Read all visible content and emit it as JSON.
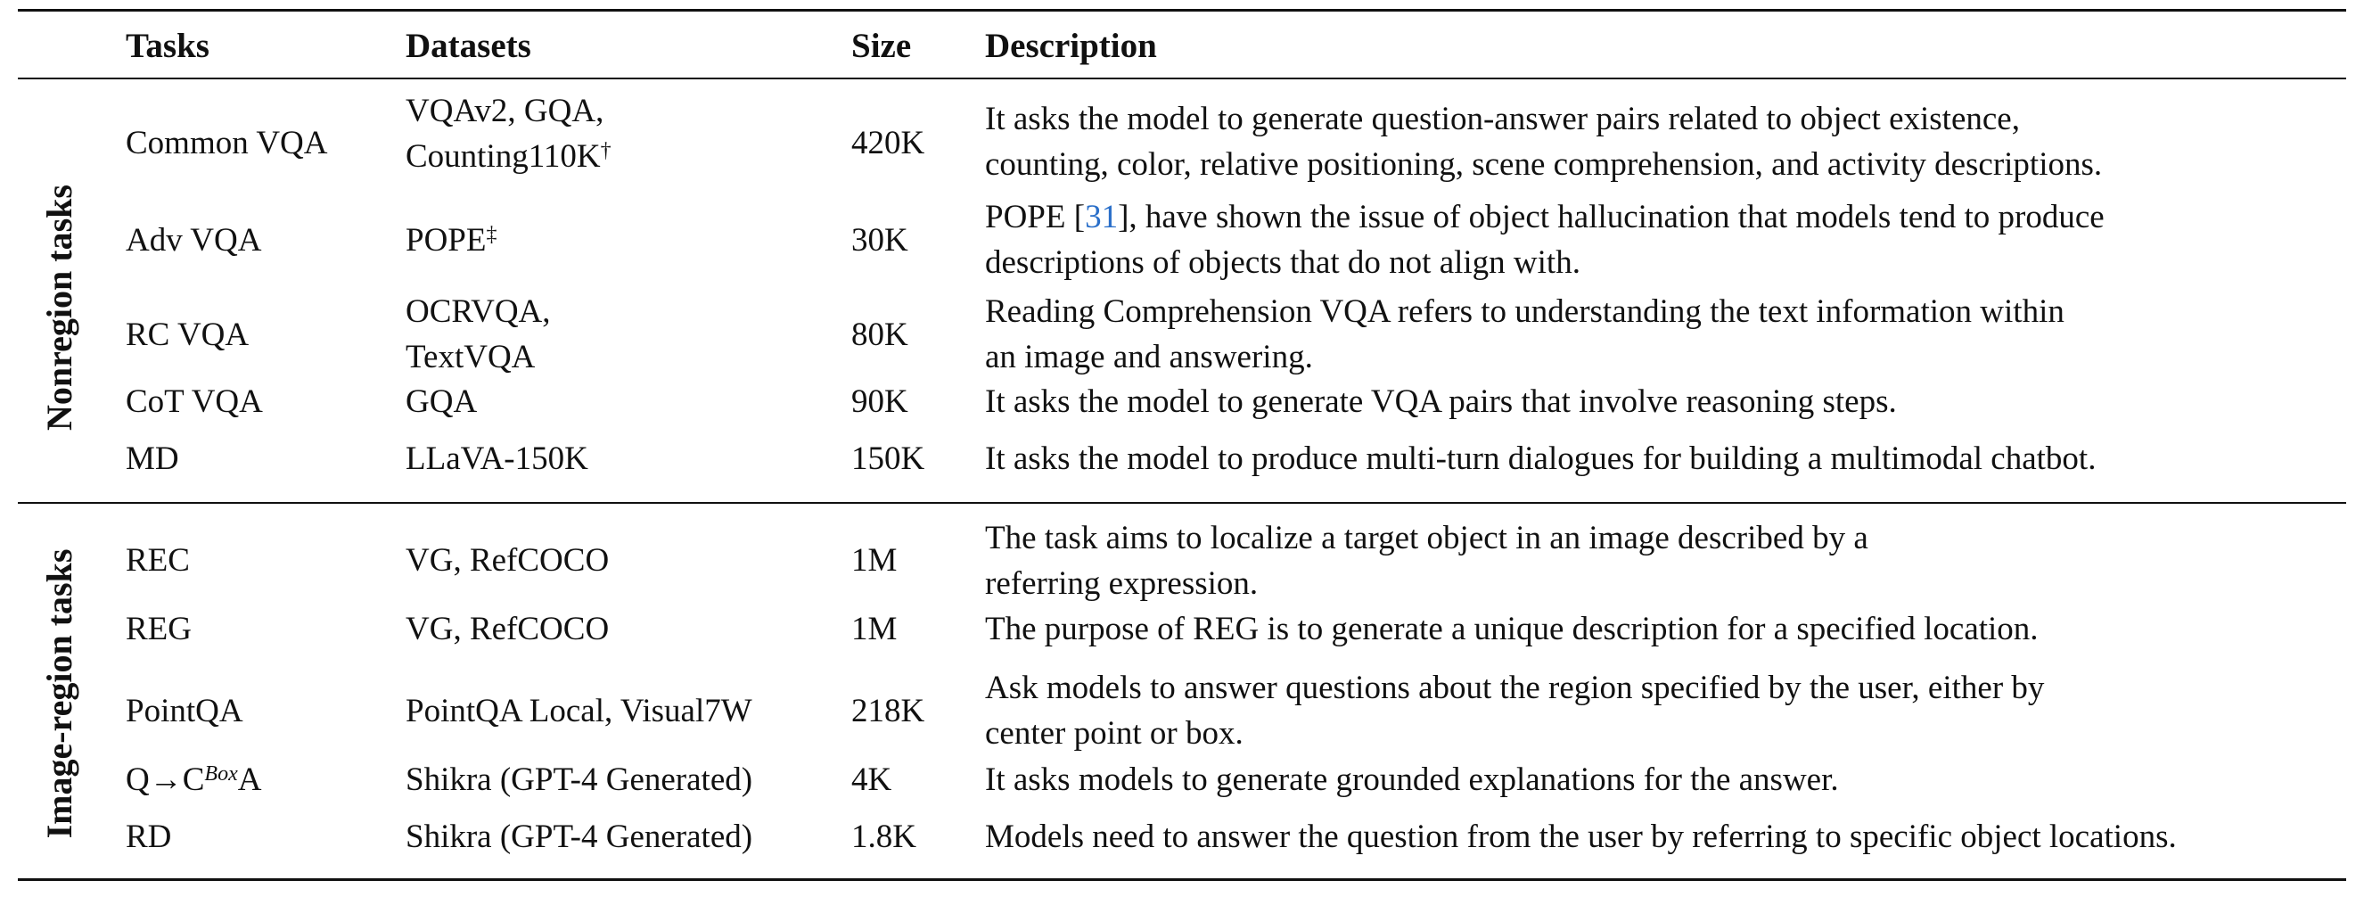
{
  "headers": {
    "tasks": "Tasks",
    "datasets": "Datasets",
    "size": "Size",
    "description": "Description"
  },
  "groups": {
    "nonregion": "Nonregion tasks",
    "image_region": "Image-region tasks"
  },
  "rows": {
    "common_vqa": {
      "task": "Common VQA",
      "datasets_line1": "VQAv2, GQA,",
      "datasets_line2": "Counting110K",
      "datasets_mark": "†",
      "size": "420K",
      "desc_line1": "It asks the model to generate question-answer pairs related to object existence,",
      "desc_line2": "counting, color, relative positioning, scene comprehension, and activity descriptions."
    },
    "adv_vqa": {
      "task": "Adv VQA",
      "datasets": "POPE",
      "datasets_mark": "‡",
      "size": "30K",
      "desc_line1_pre": "POPE [",
      "desc_line1_ref": "31",
      "desc_line1_post": "], have shown the issue of object hallucination that models tend to produce",
      "desc_line2": "descriptions of objects that do not align with."
    },
    "rc_vqa": {
      "task": "RC VQA",
      "datasets_line1": "OCRVQA,",
      "datasets_line2": "TextVQA",
      "size": "80K",
      "desc_line1": "Reading Comprehension VQA refers to understanding the text information within",
      "desc_line2": "an image and answering."
    },
    "cot_vqa": {
      "task": "CoT VQA",
      "datasets": "GQA",
      "size": "90K",
      "desc": "It asks the model to generate VQA pairs that involve reasoning steps."
    },
    "md": {
      "task": "MD",
      "datasets": "LLaVA-150K",
      "size": "150K",
      "desc": "It asks the model to produce multi-turn dialogues for building a multimodal chatbot."
    },
    "rec": {
      "task": "REC",
      "datasets": "VG, RefCOCO",
      "size": "1M",
      "desc_line1": "The task aims to localize a target object in an image described by a",
      "desc_line2": "referring expression."
    },
    "reg": {
      "task": "REG",
      "datasets": "VG, RefCOCO",
      "size": "1M",
      "desc": "The purpose of REG is to generate a unique description for a specified location."
    },
    "pointqa": {
      "task": "PointQA",
      "datasets": "PointQA Local, Visual7W",
      "size": "218K",
      "desc_line1": "Ask models to answer questions about the region specified by the user, either by",
      "desc_line2": "center point or box."
    },
    "qca": {
      "task_pre": "Q→C",
      "task_sup": "Box",
      "task_post": "A",
      "datasets": "Shikra (GPT-4 Generated)",
      "size": "4K",
      "desc": "It asks models to generate grounded explanations for the answer."
    },
    "rd": {
      "task": "RD",
      "datasets": "Shikra (GPT-4 Generated)",
      "size": "1.8K",
      "desc": "Models need to answer the question from the user by referring to specific object locations."
    }
  }
}
